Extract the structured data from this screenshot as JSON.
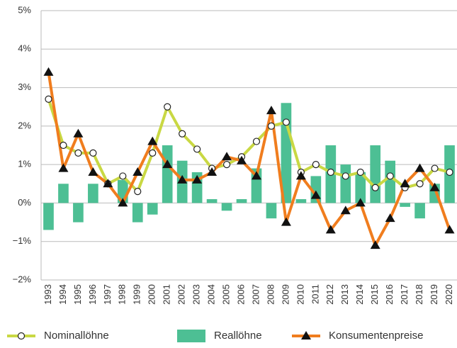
{
  "chart_data": {
    "type": "bar-line",
    "categories": [
      "1993",
      "1994",
      "1995",
      "1996",
      "1997",
      "1998",
      "1999",
      "2000",
      "2001",
      "2002",
      "2003",
      "2004",
      "2005",
      "2006",
      "2007",
      "2008",
      "2009",
      "2010",
      "2011",
      "2012",
      "2013",
      "2014",
      "2015",
      "2016",
      "2017",
      "2018",
      "2019",
      "2020"
    ],
    "series": [
      {
        "name": "Nominallöhne",
        "type": "line",
        "marker": "circle",
        "color": "#c9d843",
        "values": [
          2.7,
          1.5,
          1.3,
          1.3,
          0.5,
          0.7,
          0.3,
          1.3,
          2.5,
          1.8,
          1.4,
          0.9,
          1.0,
          1.2,
          1.6,
          2.0,
          2.1,
          0.8,
          1.0,
          0.8,
          0.7,
          0.8,
          0.4,
          0.7,
          0.4,
          0.5,
          0.9,
          0.8
        ]
      },
      {
        "name": "Reallöhne",
        "type": "bar",
        "color": "#4dbf94",
        "values": [
          -0.7,
          0.5,
          -0.5,
          0.5,
          0.0,
          0.6,
          -0.5,
          -0.3,
          1.5,
          1.1,
          0.8,
          0.1,
          -0.2,
          0.1,
          0.9,
          -0.4,
          2.6,
          0.1,
          0.7,
          1.5,
          1.0,
          0.8,
          1.5,
          1.1,
          -0.1,
          -0.4,
          0.5,
          1.5
        ]
      },
      {
        "name": "Konsumentenpreise",
        "type": "line",
        "marker": "triangle",
        "color": "#f07d1e",
        "values": [
          3.4,
          0.9,
          1.8,
          0.8,
          0.5,
          0.0,
          0.8,
          1.6,
          1.0,
          0.6,
          0.6,
          0.8,
          1.2,
          1.1,
          0.7,
          2.4,
          -0.5,
          0.7,
          0.2,
          -0.7,
          -0.2,
          0.0,
          -1.1,
          -0.4,
          0.5,
          0.9,
          0.4,
          -0.7
        ]
      }
    ],
    "ylim": [
      -2,
      5
    ],
    "yticks": [
      {
        "value": -2,
        "label": "−2%"
      },
      {
        "value": -1,
        "label": "−1%"
      },
      {
        "value": 0,
        "label": "0%"
      },
      {
        "value": 1,
        "label": "1%"
      },
      {
        "value": 2,
        "label": "2%"
      },
      {
        "value": 3,
        "label": "3%"
      },
      {
        "value": 4,
        "label": "4%"
      },
      {
        "value": 5,
        "label": "5%"
      }
    ],
    "grid": true,
    "legend": "bottom"
  }
}
